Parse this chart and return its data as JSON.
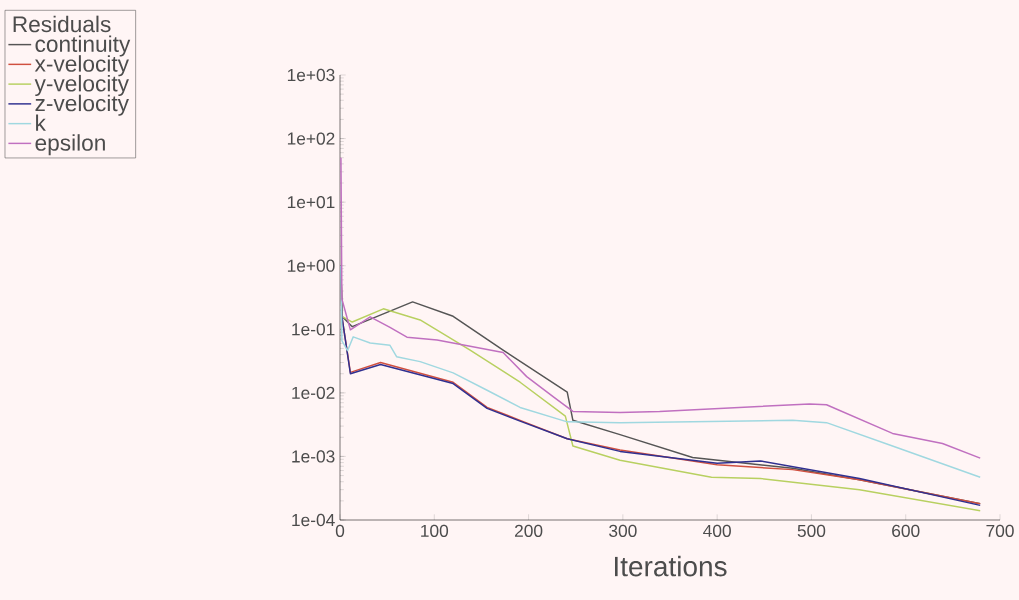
{
  "chart_data": {
    "type": "line",
    "xlabel": "Iterations",
    "legend_title": "Residuals",
    "legend": "top left",
    "log": "y",
    "grid": false,
    "marker": "none",
    "xlim": [
      0,
      700
    ],
    "xticks": [
      0,
      100,
      200,
      300,
      400,
      500,
      600,
      700
    ],
    "ylim": [
      0.0001,
      1000
    ],
    "yticks": [
      {
        "value": 0.0001,
        "label": "1e-04"
      },
      {
        "value": 0.001,
        "label": "1e-03"
      },
      {
        "value": 0.01,
        "label": "1e-02"
      },
      {
        "value": 0.1,
        "label": "1e-01"
      },
      {
        "value": 1,
        "label": "1e+00"
      },
      {
        "value": 10,
        "label": "1e+01"
      },
      {
        "value": 100,
        "label": "1e+02"
      },
      {
        "value": 1000,
        "label": "1e+03"
      }
    ],
    "series": [
      {
        "name": "continuity",
        "color": "#555555",
        "x": [
          1,
          2,
          13,
          77,
          120,
          173,
          241,
          247,
          297,
          374,
          480,
          551,
          679
        ],
        "values": [
          1,
          0.16,
          0.11,
          0.27,
          0.16,
          0.047,
          0.0103,
          0.0037,
          0.0022,
          0.00096,
          0.00065,
          0.00043,
          0.00018
        ]
      },
      {
        "name": "x-velocity",
        "color": "#d05040",
        "x": [
          1,
          2,
          11,
          43,
          120,
          156,
          191,
          241,
          297,
          400,
          480,
          551,
          679
        ],
        "values": [
          1,
          0.16,
          0.021,
          0.03,
          0.0147,
          0.0059,
          0.0037,
          0.0019,
          0.00126,
          0.00074,
          0.00062,
          0.00043,
          0.00018
        ]
      },
      {
        "name": "y-velocity",
        "color": "#b8d060",
        "x": [
          1,
          2,
          13,
          46,
          85,
          138,
          191,
          239,
          247,
          297,
          394,
          446,
          551,
          679
        ],
        "values": [
          1,
          0.16,
          0.13,
          0.21,
          0.14,
          0.047,
          0.0147,
          0.0043,
          0.00146,
          0.00087,
          0.00047,
          0.00045,
          0.0003,
          0.00014
        ]
      },
      {
        "name": "z-velocity",
        "color": "#303090",
        "x": [
          1,
          2,
          11,
          43,
          120,
          156,
          191,
          241,
          297,
          400,
          446,
          551,
          679
        ],
        "values": [
          1,
          0.16,
          0.02,
          0.028,
          0.014,
          0.0057,
          0.0036,
          0.0019,
          0.0012,
          0.00078,
          0.00085,
          0.00045,
          0.00017
        ]
      },
      {
        "name": "k",
        "color": "#a0d8e0",
        "x": [
          1,
          2,
          8,
          14,
          32,
          53,
          60,
          85,
          120,
          156,
          191,
          241,
          297,
          480,
          516,
          586,
          679
        ],
        "values": [
          1,
          0.066,
          0.046,
          0.076,
          0.061,
          0.056,
          0.037,
          0.031,
          0.0206,
          0.011,
          0.0059,
          0.0035,
          0.0034,
          0.0037,
          0.0034,
          0.00146,
          0.00047
        ]
      },
      {
        "name": "epsilon",
        "color": "#c070c0",
        "x": [
          1,
          2,
          11,
          32,
          53,
          71,
          103,
          138,
          173,
          198,
          226,
          247,
          297,
          339,
          498,
          516,
          586,
          639,
          679
        ],
        "values": [
          50,
          0.3,
          0.098,
          0.157,
          0.107,
          0.075,
          0.068,
          0.054,
          0.043,
          0.018,
          0.0087,
          0.0051,
          0.0049,
          0.0051,
          0.0067,
          0.0065,
          0.0023,
          0.0016,
          0.00094
        ]
      }
    ]
  }
}
